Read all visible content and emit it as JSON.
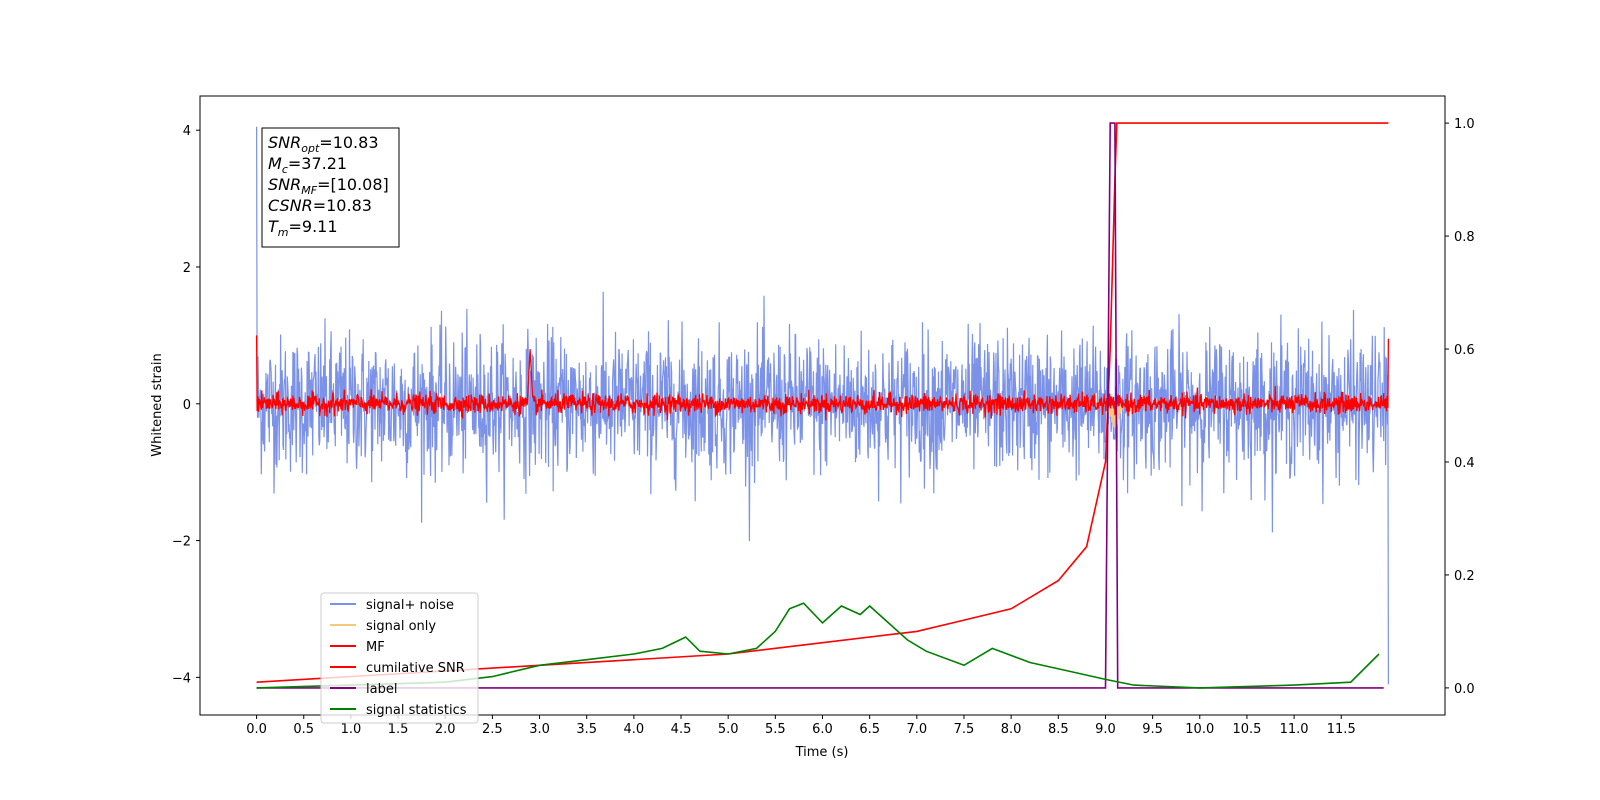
{
  "chart_data": {
    "type": "line",
    "xlabel": "Time (s)",
    "ylabel_left": "Whitened strain",
    "ylabel_right": "",
    "xlim": [
      -0.6,
      12.6
    ],
    "ylim_left": [
      -4.55,
      4.5
    ],
    "ylim_right": [
      -0.048,
      1.048
    ],
    "x_ticks": [
      "0.0",
      "0.5",
      "1.0",
      "1.5",
      "2.0",
      "2.5",
      "3.0",
      "3.5",
      "4.0",
      "4.5",
      "5.0",
      "5.5",
      "6.0",
      "6.5",
      "7.0",
      "7.5",
      "8.0",
      "8.5",
      "9.0",
      "9.5",
      "10.0",
      "10.5",
      "11.0",
      "11.5"
    ],
    "y_ticks_left": [
      "−4",
      "−2",
      "0",
      "2",
      "4"
    ],
    "y_ticks_right": [
      "0.0",
      "0.2",
      "0.4",
      "0.6",
      "0.8",
      "1.0"
    ],
    "grid": false,
    "legend_position": "lower-left",
    "annotation": [
      {
        "base": "SNR",
        "sub": "opt",
        "value": "=10.83"
      },
      {
        "base": "M",
        "sub": "c",
        "value": "=37.21"
      },
      {
        "base": "SNR",
        "sub": "MF",
        "value": "=[10.08]"
      },
      {
        "base": "CSNR",
        "sub": "",
        "value": "=10.83"
      },
      {
        "base": "T",
        "sub": "m",
        "value": "=9.11"
      }
    ],
    "series": [
      {
        "name": "signal+ noise",
        "color": "#7b92e8",
        "axis": "left",
        "kind": "noise",
        "amplitude": 0.5,
        "range": [
          0.0,
          12.0
        ]
      },
      {
        "name": "signal only",
        "color": "#f5c97a",
        "axis": "left",
        "kind": "chirp",
        "peak_x": 9.1,
        "peak_y": -0.2
      },
      {
        "name": "MF",
        "color": "#ff0000",
        "axis": "left",
        "kind": "noise",
        "amplitude": 0.12,
        "bump_x": 2.9,
        "bump_y": 0.8
      },
      {
        "name": "cumilative SNR",
        "color": "#ff0000",
        "axis": "right",
        "x": [
          0.0,
          1.0,
          2.0,
          3.0,
          4.0,
          5.0,
          6.0,
          7.0,
          7.5,
          8.0,
          8.5,
          8.8,
          9.0,
          9.05,
          9.1,
          9.12,
          12.0
        ],
        "values": [
          0.01,
          0.02,
          0.03,
          0.04,
          0.05,
          0.06,
          0.08,
          0.1,
          0.12,
          0.14,
          0.19,
          0.25,
          0.4,
          0.6,
          0.9,
          1.0,
          1.0
        ]
      },
      {
        "name": "label",
        "color": "#800080",
        "axis": "right",
        "x": [
          0.0,
          9.0,
          9.05,
          9.1,
          9.13,
          11.95
        ],
        "values": [
          0.0,
          0.0,
          1.0,
          1.0,
          0.0,
          0.0
        ]
      },
      {
        "name": "signal statistics",
        "color": "#008000",
        "axis": "right",
        "x": [
          0.0,
          1.0,
          2.0,
          2.5,
          3.0,
          3.5,
          4.0,
          4.3,
          4.55,
          4.7,
          5.0,
          5.3,
          5.5,
          5.65,
          5.8,
          6.0,
          6.2,
          6.4,
          6.5,
          6.7,
          6.9,
          7.1,
          7.5,
          7.8,
          8.2,
          8.6,
          9.0,
          9.3,
          10.0,
          11.0,
          11.6,
          11.9
        ],
        "values": [
          0.0,
          0.005,
          0.01,
          0.02,
          0.04,
          0.05,
          0.06,
          0.07,
          0.09,
          0.065,
          0.06,
          0.07,
          0.1,
          0.14,
          0.15,
          0.115,
          0.145,
          0.13,
          0.145,
          0.115,
          0.085,
          0.065,
          0.04,
          0.07,
          0.045,
          0.03,
          0.015,
          0.005,
          0.0,
          0.005,
          0.01,
          0.06
        ]
      }
    ]
  }
}
